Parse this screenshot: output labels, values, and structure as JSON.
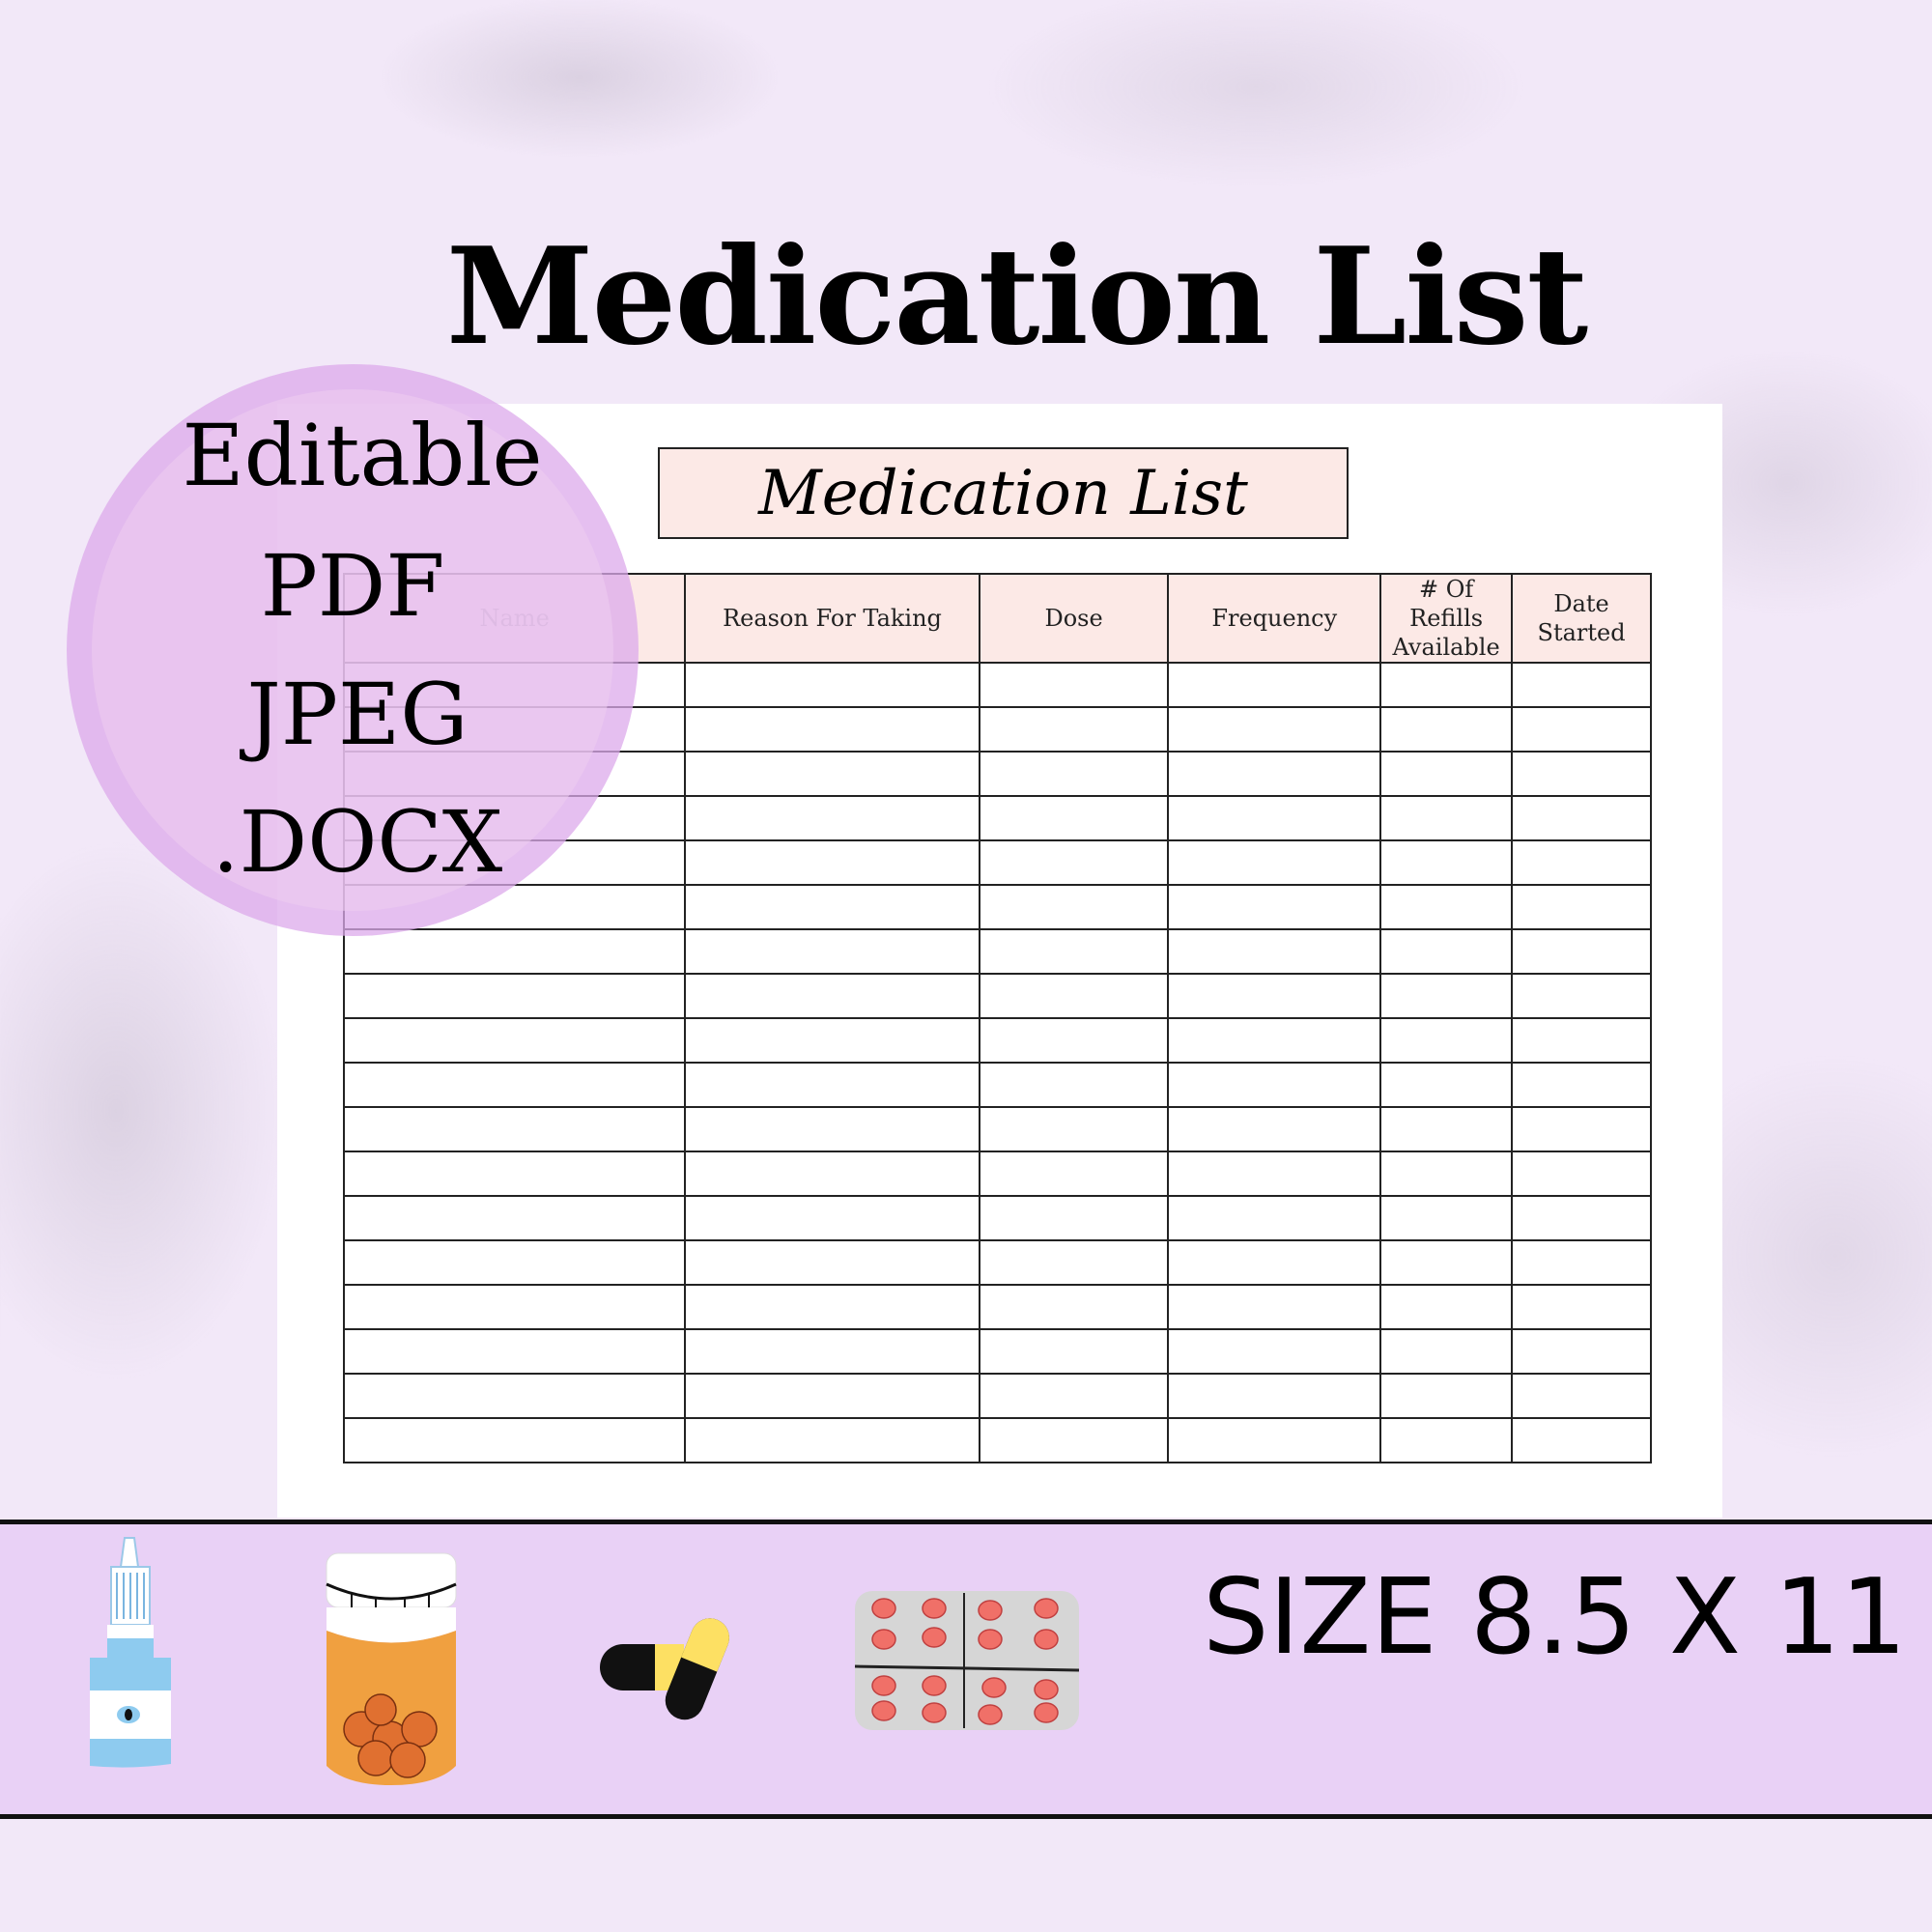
{
  "title": "Medication List",
  "form": {
    "title": "Medication List",
    "columns": [
      "Name",
      "Reason For Taking",
      "Dose",
      "Frequency",
      "# Of Refills\nAvailable",
      "Date\nStarted"
    ]
  },
  "formats": [
    "Editable",
    "PDF",
    "JPEG",
    ".DOCX"
  ],
  "size_label": "SIZE 8.5 X 11",
  "icons": [
    "eye-drop-bottle-icon",
    "pill-bottle-icon",
    "capsule-icon",
    "blister-pack-icon"
  ],
  "colors": {
    "background": "#f2e8f8",
    "header_fill": "#fce9e6",
    "badge": "#dcaaeb",
    "band": "#e8d0f6"
  }
}
